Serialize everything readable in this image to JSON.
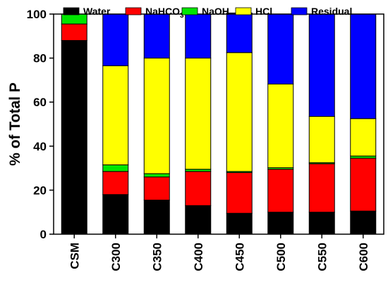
{
  "chart_data": {
    "type": "bar",
    "stacked": true,
    "title": "",
    "xlabel": "",
    "ylabel": "% of Total P",
    "ylim": [
      0,
      100
    ],
    "yticks": [
      0,
      20,
      40,
      60,
      80,
      100
    ],
    "grid": false,
    "legend_position": "top",
    "categories": [
      "CSM",
      "C300",
      "C350",
      "C400",
      "C450",
      "C500",
      "C550",
      "C600"
    ],
    "series": [
      {
        "name": "Water",
        "label_main": "Water",
        "label_sub": "",
        "color": "#000000",
        "values": [
          88,
          18,
          15.5,
          13,
          9.5,
          10,
          10,
          10.5
        ]
      },
      {
        "name": "NaHCO3",
        "label_main": "NaHCO",
        "label_sub": "3",
        "color": "#ff0000",
        "values": [
          7.5,
          10.5,
          10.5,
          15.5,
          18.5,
          19.5,
          22,
          24
        ]
      },
      {
        "name": "NaOH",
        "label_main": "NaOH",
        "label_sub": "",
        "color": "#00e600",
        "values": [
          4.5,
          3,
          1.5,
          1,
          0.5,
          0.7,
          0.5,
          1
        ]
      },
      {
        "name": "HCl",
        "label_main": "HCl",
        "label_sub": "",
        "color": "#ffff00",
        "values": [
          0,
          45,
          52.5,
          50.5,
          54,
          38,
          21,
          17
        ]
      },
      {
        "name": "Residual",
        "label_main": "Residual",
        "label_sub": "",
        "color": "#0000ff",
        "values": [
          0,
          23.5,
          20,
          20,
          18,
          31.8,
          46.5,
          47.5
        ]
      }
    ]
  }
}
